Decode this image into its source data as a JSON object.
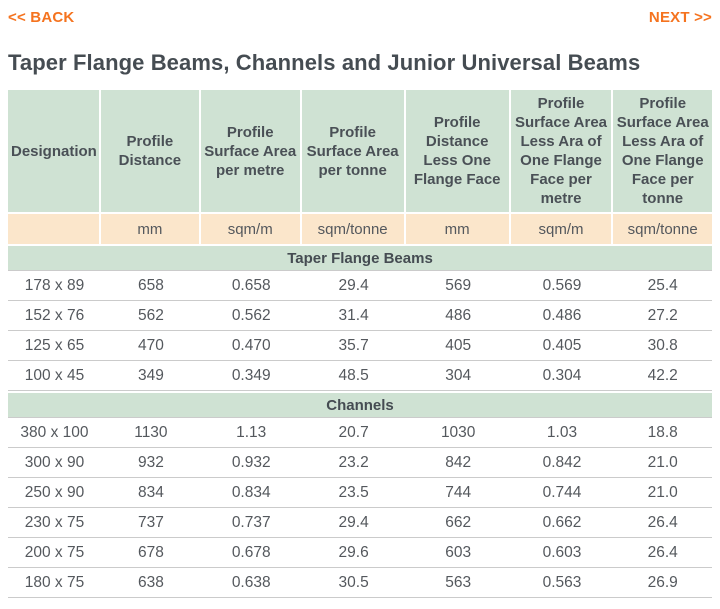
{
  "nav": {
    "back_label": "<< BACK",
    "next_label": "NEXT >>"
  },
  "page": {
    "title": "Taper Flange Beams, Channels and Junior Universal Beams"
  },
  "colors": {
    "accent_orange": "#f5731f",
    "header_green": "#cfe2d3",
    "unit_peach": "#fbe6cb",
    "text_dark": "#454c52",
    "row_line": "#cbcbcb"
  },
  "table": {
    "columns": [
      "Designation",
      "Profile Distance",
      "Profile Surface Area per metre",
      "Profile Surface Area per tonne",
      "Profile Distance Less One Flange Face",
      "Profile Surface Area Less Ara of One Flange Face per metre",
      "Profile Surface Area Less Ara of One Flange Face per tonne"
    ],
    "units": [
      "",
      "mm",
      "sqm/m",
      "sqm/tonne",
      "mm",
      "sqm/m",
      "sqm/tonne"
    ],
    "sections": [
      {
        "name": "Taper Flange Beams",
        "rows": [
          [
            "178 x 89",
            "658",
            "0.658",
            "29.4",
            "569",
            "0.569",
            "25.4"
          ],
          [
            "152 x 76",
            "562",
            "0.562",
            "31.4",
            "486",
            "0.486",
            "27.2"
          ],
          [
            "125 x 65",
            "470",
            "0.470",
            "35.7",
            "405",
            "0.405",
            "30.8"
          ],
          [
            "100 x 45",
            "349",
            "0.349",
            "48.5",
            "304",
            "0.304",
            "42.2"
          ]
        ]
      },
      {
        "name": "Channels",
        "rows": [
          [
            "380 x 100",
            "1130",
            "1.13",
            "20.7",
            "1030",
            "1.03",
            "18.8"
          ],
          [
            "300 x 90",
            "932",
            "0.932",
            "23.2",
            "842",
            "0.842",
            "21.0"
          ],
          [
            "250 x 90",
            "834",
            "0.834",
            "23.5",
            "744",
            "0.744",
            "21.0"
          ],
          [
            "230 x 75",
            "737",
            "0.737",
            "29.4",
            "662",
            "0.662",
            "26.4"
          ],
          [
            "200 x 75",
            "678",
            "0.678",
            "29.6",
            "603",
            "0.603",
            "26.4"
          ],
          [
            "180 x 75",
            "638",
            "0.638",
            "30.5",
            "563",
            "0.563",
            "26.9"
          ]
        ]
      }
    ]
  }
}
